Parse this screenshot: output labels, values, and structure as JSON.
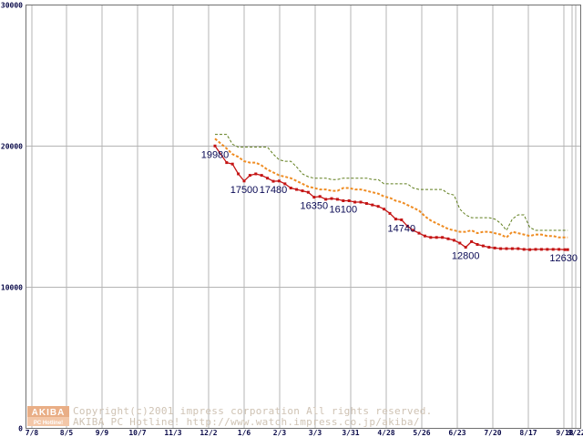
{
  "chart_data": {
    "type": "line",
    "title": "",
    "xlabel": "",
    "ylabel": "",
    "ylim": [
      0,
      30000
    ],
    "y_ticks": [
      "0",
      "10000",
      "20000",
      "30000"
    ],
    "x_tick_labels": [
      "7/8",
      "8/5",
      "9/9",
      "10/7",
      "11/3",
      "12/2",
      "1/6",
      "2/3",
      "3/3",
      "3/31",
      "4/28",
      "5/26",
      "6/23",
      "7/20",
      "8/17",
      "9/18",
      "9/22"
    ],
    "grid": true,
    "series": [
      {
        "name": "max",
        "color": "#5f7d1c",
        "style": "dashed",
        "x": [
          0,
          4,
          6,
          8,
          10,
          12,
          14,
          16,
          18,
          20,
          22,
          24,
          26,
          28,
          30,
          32,
          34,
          36,
          38,
          40,
          42,
          44,
          46,
          48,
          50,
          52,
          54,
          56,
          58,
          60,
          62,
          64,
          66,
          68,
          70,
          72,
          74,
          76,
          78,
          80,
          82,
          84,
          86,
          88,
          90,
          92,
          94,
          96,
          98,
          100,
          102,
          104,
          106,
          108,
          110,
          112,
          114,
          116,
          118,
          120,
          121
        ],
        "y": [
          20800,
          20800,
          20100,
          19900,
          19900,
          19900,
          19900,
          19900,
          19900,
          19400,
          19000,
          18900,
          18900,
          18500,
          18000,
          17800,
          17700,
          17700,
          17700,
          17600,
          17600,
          17700,
          17700,
          17700,
          17700,
          17700,
          17600,
          17600,
          17300,
          17300,
          17300,
          17300,
          17300,
          17000,
          16900,
          16900,
          16900,
          16900,
          16900,
          16600,
          16500,
          15500,
          15100,
          14900,
          14900,
          14900,
          14900,
          14800,
          14500,
          14000,
          14800,
          15100,
          15100,
          14200,
          14000,
          14000,
          14000,
          14000,
          14000,
          14000,
          14000
        ]
      },
      {
        "name": "average",
        "color": "#ef8c22",
        "style": "dotted",
        "x": [
          0,
          4,
          6,
          8,
          10,
          12,
          14,
          16,
          18,
          20,
          22,
          24,
          26,
          28,
          30,
          32,
          34,
          36,
          38,
          40,
          42,
          44,
          46,
          48,
          50,
          52,
          54,
          56,
          58,
          60,
          62,
          64,
          66,
          68,
          70,
          72,
          74,
          76,
          78,
          80,
          82,
          84,
          86,
          88,
          90,
          92,
          94,
          96,
          98,
          100,
          102,
          104,
          106,
          108,
          110,
          112,
          114,
          116,
          118,
          120,
          121
        ],
        "y": [
          20500,
          19800,
          19400,
          19200,
          18900,
          18800,
          18800,
          18600,
          18300,
          18100,
          17900,
          17800,
          17700,
          17500,
          17300,
          17100,
          17000,
          16900,
          16900,
          16800,
          16800,
          17000,
          17000,
          16900,
          16900,
          16800,
          16700,
          16600,
          16400,
          16300,
          16100,
          16000,
          15800,
          15600,
          15400,
          15000,
          14700,
          14500,
          14300,
          14100,
          14000,
          13900,
          13900,
          14000,
          13800,
          13900,
          13900,
          13800,
          13700,
          13500,
          13900,
          13800,
          13700,
          13600,
          13700,
          13700,
          13600,
          13600,
          13500,
          13500,
          13500
        ]
      },
      {
        "name": "min",
        "color": "#c41414",
        "style": "solid",
        "x": [
          0,
          4,
          6,
          8,
          10,
          12,
          14,
          16,
          18,
          20,
          22,
          24,
          26,
          28,
          30,
          32,
          34,
          36,
          38,
          40,
          42,
          44,
          46,
          48,
          50,
          52,
          54,
          56,
          58,
          60,
          62,
          64,
          66,
          68,
          70,
          72,
          74,
          76,
          78,
          80,
          82,
          84,
          86,
          88,
          90,
          92,
          94,
          96,
          98,
          100,
          102,
          104,
          106,
          108,
          110,
          112,
          114,
          116,
          118,
          120,
          121
        ],
        "y": [
          19980,
          18800,
          18700,
          18000,
          17500,
          17900,
          18000,
          17900,
          17700,
          17480,
          17500,
          17300,
          17000,
          16900,
          16800,
          16700,
          16350,
          16400,
          16200,
          16250,
          16200,
          16100,
          16100,
          16000,
          16000,
          15900,
          15800,
          15700,
          15500,
          15200,
          14800,
          14740,
          14300,
          14000,
          13800,
          13600,
          13500,
          13500,
          13500,
          13400,
          13300,
          13100,
          12800,
          13200,
          13000,
          12900,
          12800,
          12750,
          12700,
          12700,
          12700,
          12700,
          12650,
          12630,
          12650,
          12650,
          12650,
          12650,
          12650,
          12630,
          12630
        ]
      }
    ],
    "data_labels": [
      {
        "series": "min",
        "x": 0,
        "y": 19980,
        "text": "19980",
        "anchor": "below"
      },
      {
        "series": "min",
        "x": 10,
        "y": 17500,
        "text": "17500",
        "anchor": "below"
      },
      {
        "series": "min",
        "x": 20,
        "y": 17480,
        "text": "17480",
        "anchor": "below"
      },
      {
        "series": "min",
        "x": 34,
        "y": 16350,
        "text": "16350",
        "anchor": "below"
      },
      {
        "series": "min",
        "x": 44,
        "y": 16100,
        "text": "16100",
        "anchor": "below"
      },
      {
        "series": "min",
        "x": 64,
        "y": 14740,
        "text": "14740",
        "anchor": "below"
      },
      {
        "series": "min",
        "x": 86,
        "y": 12800,
        "text": "12800",
        "anchor": "below"
      },
      {
        "series": "min",
        "x": 121,
        "y": 12630,
        "text": "12630",
        "anchor": "below"
      }
    ]
  },
  "watermark": {
    "logo_line1": "AKIBA",
    "logo_line2": "PC Hotline!",
    "line1": "Copyright(c)2001 impress corporation All rights reserved.",
    "line2": "AKIBA PC Hotline!  http://www.watch.impress.co.jp/akiba/"
  },
  "colors": {
    "grid": "#b4b4b4",
    "frame": "#707070",
    "tick_text": "#0b0b4a",
    "label_text": "#0a0a55",
    "logo_bg": "#e9ae86"
  }
}
